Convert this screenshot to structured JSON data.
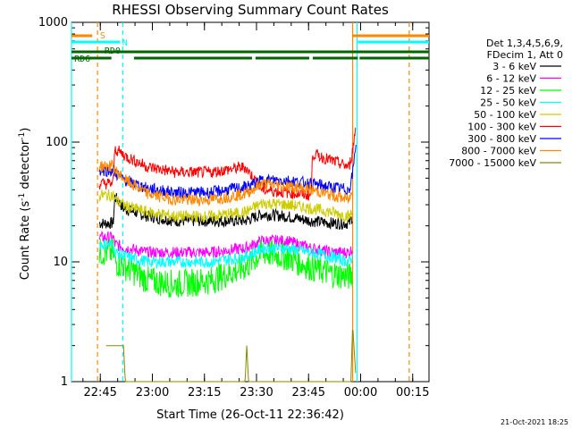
{
  "chart_data": {
    "type": "line",
    "title": "RHESSI Observing Summary Count Rates",
    "xlabel": "Start Time (26-Oct-11 22:36:42)",
    "ylabel": "Count Rate (s",
    "ylabel_sup": "-1",
    "ylabel_tail": " detector",
    "ylabel_tail_sup": "-1",
    "ylabel_close": ")",
    "x_ticks": [
      "22:45",
      "23:00",
      "23:15",
      "23:30",
      "23:45",
      "00:00",
      "00:15"
    ],
    "x_tick_minutes": [
      8.3,
      23.3,
      38.3,
      53.3,
      68.3,
      83.3,
      98.3
    ],
    "xlim_minutes": [
      0,
      103
    ],
    "y_scale": "log",
    "ylim": [
      1,
      1000
    ],
    "y_tick_labels": [
      "1",
      "10",
      "100",
      "1000"
    ],
    "y_tick_values": [
      1,
      10,
      100,
      1000
    ],
    "legend_header": [
      "Det 1,3,4,5,6,9,",
      "FDecim 1, Att 0"
    ],
    "legend_position": "right",
    "series": [
      {
        "name": "3 - 6 keV",
        "color": "#000000",
        "values": [
          [
            8,
            21
          ],
          [
            12,
            21
          ],
          [
            12.5,
            35
          ],
          [
            15,
            28
          ],
          [
            22,
            24
          ],
          [
            30,
            22
          ],
          [
            40,
            22
          ],
          [
            50,
            22
          ],
          [
            55,
            25
          ],
          [
            62,
            24
          ],
          [
            69,
            22
          ],
          [
            75,
            21
          ],
          [
            80,
            21
          ],
          [
            81,
            24
          ]
        ]
      },
      {
        "name": "6 - 12 keV",
        "color": "#ff00ff",
        "values": [
          [
            8,
            16
          ],
          [
            12,
            16
          ],
          [
            12.5,
            14
          ],
          [
            16,
            13
          ],
          [
            22,
            12
          ],
          [
            30,
            12
          ],
          [
            40,
            12
          ],
          [
            50,
            13
          ],
          [
            55,
            15
          ],
          [
            62,
            15
          ],
          [
            69,
            13
          ],
          [
            75,
            12
          ],
          [
            80,
            12
          ],
          [
            81,
            13
          ]
        ]
      },
      {
        "name": "12 - 25 keV",
        "color": "#00ff00",
        "values": [
          [
            8,
            12
          ],
          [
            12,
            12
          ],
          [
            12.5,
            10
          ],
          [
            16,
            9
          ],
          [
            22,
            7
          ],
          [
            30,
            6.5
          ],
          [
            40,
            7
          ],
          [
            50,
            9
          ],
          [
            55,
            12
          ],
          [
            62,
            11
          ],
          [
            69,
            9
          ],
          [
            75,
            8
          ],
          [
            80,
            7.5
          ],
          [
            81,
            8
          ]
        ]
      },
      {
        "name": "25 - 50 keV",
        "color": "#00ffff",
        "values": [
          [
            8,
            14
          ],
          [
            12,
            14
          ],
          [
            12.5,
            12
          ],
          [
            16,
            11
          ],
          [
            22,
            10
          ],
          [
            30,
            10
          ],
          [
            40,
            10
          ],
          [
            50,
            11
          ],
          [
            55,
            13
          ],
          [
            62,
            13
          ],
          [
            69,
            12
          ],
          [
            75,
            11
          ],
          [
            80,
            10
          ],
          [
            81,
            11
          ]
        ]
      },
      {
        "name": "50 - 100 keV",
        "color": "#cccc00",
        "values": [
          [
            8,
            36
          ],
          [
            12,
            36
          ],
          [
            12.5,
            33
          ],
          [
            16,
            29
          ],
          [
            22,
            26
          ],
          [
            30,
            24
          ],
          [
            40,
            24
          ],
          [
            50,
            26
          ],
          [
            55,
            31
          ],
          [
            62,
            30
          ],
          [
            69,
            28
          ],
          [
            75,
            26
          ],
          [
            80,
            24
          ],
          [
            81,
            26
          ]
        ]
      },
      {
        "name": "100 - 300 keV",
        "color": "#ff0000",
        "values": [
          [
            8,
            45
          ],
          [
            12,
            45
          ],
          [
            12.5,
            88
          ],
          [
            16,
            75
          ],
          [
            22,
            62
          ],
          [
            30,
            56
          ],
          [
            40,
            56
          ],
          [
            50,
            62
          ],
          [
            55,
            40
          ],
          [
            62,
            38
          ],
          [
            69,
            36
          ],
          [
            69.5,
            80
          ],
          [
            75,
            70
          ],
          [
            80,
            62
          ],
          [
            81,
            85
          ],
          [
            82,
            140
          ]
        ]
      },
      {
        "name": "300 - 800 keV",
        "color": "#0000ff",
        "values": [
          [
            8,
            58
          ],
          [
            12,
            58
          ],
          [
            12.5,
            55
          ],
          [
            16,
            47
          ],
          [
            22,
            41
          ],
          [
            30,
            38
          ],
          [
            40,
            38
          ],
          [
            50,
            42
          ],
          [
            55,
            48
          ],
          [
            62,
            48
          ],
          [
            69,
            45
          ],
          [
            75,
            42
          ],
          [
            80,
            40
          ],
          [
            81,
            55
          ],
          [
            82,
            100
          ]
        ]
      },
      {
        "name": "800 - 7000 keV",
        "color": "#ff8800",
        "values": [
          [
            8,
            63
          ],
          [
            12,
            63
          ],
          [
            12.5,
            58
          ],
          [
            16,
            47
          ],
          [
            22,
            37
          ],
          [
            30,
            33
          ],
          [
            40,
            33
          ],
          [
            50,
            37
          ],
          [
            55,
            45
          ],
          [
            62,
            43
          ],
          [
            69,
            40
          ],
          [
            75,
            36
          ],
          [
            80,
            33
          ],
          [
            81,
            40
          ]
        ]
      },
      {
        "name": "7000 - 15000 keV",
        "color": "#888800",
        "values": [
          [
            10,
            2
          ],
          [
            15,
            2
          ],
          [
            15.5,
            1
          ],
          [
            50,
            1
          ],
          [
            50.5,
            2
          ],
          [
            51,
            1
          ],
          [
            80.5,
            1
          ],
          [
            81,
            3
          ],
          [
            82,
            1
          ]
        ]
      }
    ],
    "flags": [
      {
        "label": "S",
        "color": "#ff8800",
        "segments": [
          [
            0,
            6
          ],
          [
            81,
            103
          ]
        ]
      },
      {
        "label": "N",
        "color": "#00ffff",
        "segments": [
          [
            0,
            14
          ],
          [
            82.5,
            103
          ]
        ]
      },
      {
        "label": "RD0",
        "color": "#006600",
        "segments": [
          [
            0,
            103
          ]
        ]
      },
      {
        "label": "RD6",
        "color": "#006600",
        "segments": [
          [
            0,
            11.5
          ],
          [
            18,
            52
          ],
          [
            53,
            68.5
          ],
          [
            69.5,
            82.5
          ],
          [
            83,
            103
          ]
        ]
      }
    ],
    "flag_labels": [
      "S",
      "N",
      "RD0",
      "RD6"
    ],
    "vertical_markers": [
      {
        "minute": 0,
        "color": "#00ffff",
        "style": "solid"
      },
      {
        "minute": 7.5,
        "color": "#ff8800",
        "style": "dashed"
      },
      {
        "minute": 14.8,
        "color": "#00ffff",
        "style": "dashed"
      },
      {
        "minute": 81.0,
        "color": "#ff8800",
        "style": "solid"
      },
      {
        "minute": 82.3,
        "color": "#00ffff",
        "style": "solid"
      },
      {
        "minute": 97.3,
        "color": "#ff8800",
        "style": "dashed"
      }
    ],
    "footer_date": "21-Oct-2021 18:25"
  }
}
